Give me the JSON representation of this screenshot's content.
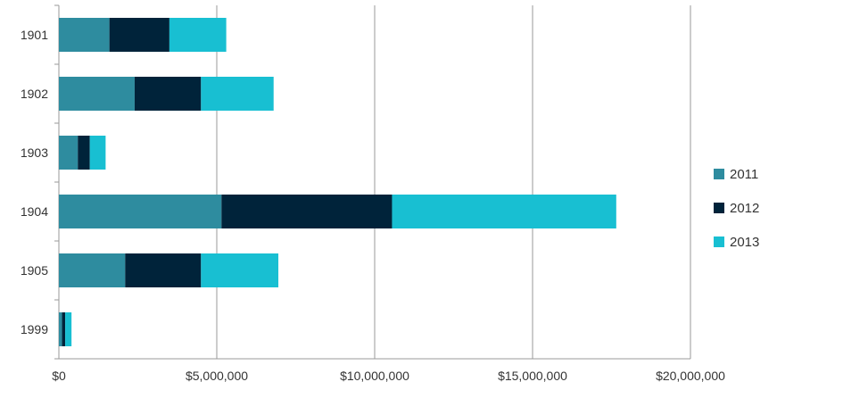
{
  "chart_data": {
    "type": "bar",
    "orientation": "horizontal",
    "stacked": true,
    "categories": [
      "1901",
      "1902",
      "1903",
      "1904",
      "1905",
      "1999"
    ],
    "series": [
      {
        "name": "2011",
        "color": "#2e8c9f",
        "values": [
          1600000,
          2400000,
          600000,
          5150000,
          2100000,
          100000
        ]
      },
      {
        "name": "2012",
        "color": "#00233a",
        "values": [
          1900000,
          2100000,
          380000,
          5400000,
          2400000,
          100000
        ]
      },
      {
        "name": "2013",
        "color": "#18bfd2",
        "values": [
          1800000,
          2300000,
          500000,
          7100000,
          2450000,
          200000
        ]
      }
    ],
    "xlim": [
      0,
      20000000
    ],
    "xticks": [
      0,
      5000000,
      10000000,
      15000000,
      20000000
    ],
    "xtick_labels": [
      "$0",
      "$5,000,000",
      "$10,000,000",
      "$15,000,000",
      "$20,000,000"
    ],
    "grid": "vertical",
    "legend_position": "right",
    "title": "",
    "xlabel": "",
    "ylabel": ""
  }
}
